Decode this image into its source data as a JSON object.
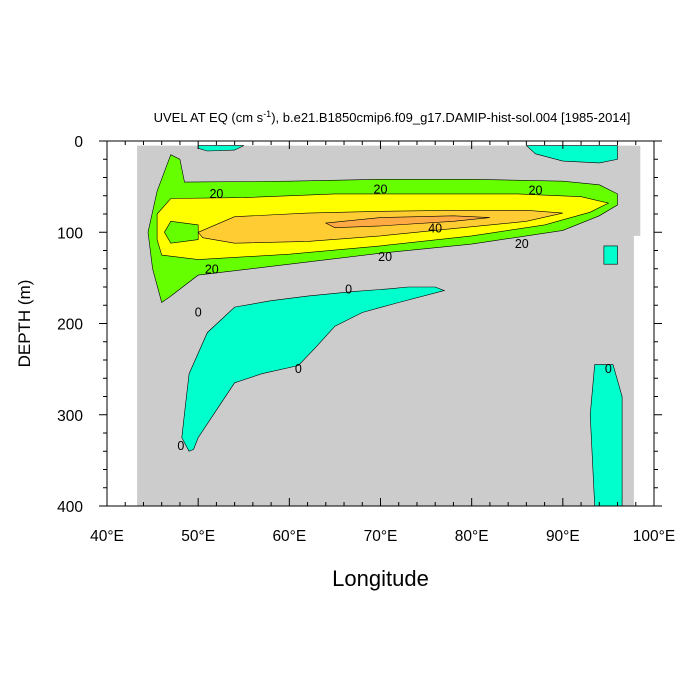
{
  "chart_data": {
    "type": "contour",
    "title": {
      "prefix": "UVEL AT EQ (cm s",
      "superscript": "-1",
      "suffix": "), b.e21.B1850cmip6.f09_g17.DAMIP-hist-sol.004 [1985-2014]"
    },
    "xlabel": "Longitude",
    "ylabel": "DEPTH (m)",
    "xlim": [
      40,
      100
    ],
    "ylim": [
      0,
      400
    ],
    "y_inverted": true,
    "x_ticks": [
      {
        "value": 40,
        "label": "40°E"
      },
      {
        "value": 50,
        "label": "50°E"
      },
      {
        "value": 60,
        "label": "60°E"
      },
      {
        "value": 70,
        "label": "70°E"
      },
      {
        "value": 80,
        "label": "80°E"
      },
      {
        "value": 90,
        "label": "90°E"
      },
      {
        "value": 100,
        "label": "100°E"
      }
    ],
    "y_ticks": [
      {
        "value": 0,
        "label": "0"
      },
      {
        "value": 100,
        "label": "100"
      },
      {
        "value": 200,
        "label": "200"
      },
      {
        "value": 300,
        "label": "300"
      },
      {
        "value": 400,
        "label": "400"
      }
    ],
    "colors": {
      "negative": "#00ffcc",
      "zero_to_10": "#33ff55",
      "10_to_20": "#66ff00",
      "20_to_30": "#ffff00",
      "30_to_40": "#ffcc33",
      "over_40": "#ffaa44",
      "land": "#ffffff",
      "contour_line": "#000000"
    },
    "contour_levels": [
      0,
      10,
      20,
      30,
      40
    ],
    "data_extent_lon": [
      43.3,
      98.5
    ],
    "regions": [
      {
        "name": "background",
        "level": "0_to_10",
        "points": [
          [
            43.3,
            5
          ],
          [
            98.5,
            5
          ],
          [
            98.5,
            400
          ],
          [
            43.3,
            400
          ]
        ]
      },
      {
        "name": "eastern-shelf-notch",
        "level": "land",
        "points": [
          [
            97.8,
            104
          ],
          [
            98.6,
            104
          ],
          [
            98.6,
            400
          ],
          [
            97.8,
            400
          ]
        ]
      },
      {
        "name": "surface-west-negative",
        "level": "negative",
        "points": [
          [
            50,
            5
          ],
          [
            55,
            5
          ],
          [
            54,
            10
          ],
          [
            51,
            11
          ],
          [
            50,
            8
          ]
        ]
      },
      {
        "name": "surface-east-negative",
        "level": "negative",
        "points": [
          [
            86,
            5
          ],
          [
            96,
            5
          ],
          [
            96,
            20
          ],
          [
            94,
            24
          ],
          [
            90,
            22
          ],
          [
            87,
            14
          ]
        ]
      },
      {
        "name": "east-small-negative",
        "level": "negative",
        "points": [
          [
            94.5,
            115
          ],
          [
            96,
            115
          ],
          [
            96,
            135
          ],
          [
            94.5,
            135
          ]
        ]
      },
      {
        "name": "subsurface-negative",
        "level": "negative",
        "points": [
          [
            49,
            340
          ],
          [
            48.2,
            325
          ],
          [
            48.6,
            290
          ],
          [
            49,
            255
          ],
          [
            51,
            210
          ],
          [
            54,
            182
          ],
          [
            58,
            175
          ],
          [
            62,
            170
          ],
          [
            67,
            165
          ],
          [
            71,
            162
          ],
          [
            73,
            160
          ],
          [
            76,
            160
          ],
          [
            77,
            164
          ],
          [
            72,
            177
          ],
          [
            68,
            188
          ],
          [
            65,
            203
          ],
          [
            63,
            225
          ],
          [
            61,
            246
          ],
          [
            57,
            255
          ],
          [
            54,
            265
          ],
          [
            52,
            295
          ],
          [
            50,
            325
          ],
          [
            49.5,
            338
          ]
        ]
      },
      {
        "name": "east-deep-negative",
        "level": "negative",
        "points": [
          [
            93.5,
            245
          ],
          [
            95.5,
            245
          ],
          [
            96.5,
            280
          ],
          [
            96.5,
            400
          ],
          [
            93.5,
            400
          ],
          [
            93,
            300
          ]
        ]
      },
      {
        "name": "jet-10",
        "level": "10_to_20",
        "points": [
          [
            45,
            140
          ],
          [
            44.5,
            100
          ],
          [
            45.5,
            55
          ],
          [
            47,
            15
          ],
          [
            48,
            20
          ],
          [
            48.5,
            45
          ],
          [
            60,
            44
          ],
          [
            70,
            42
          ],
          [
            80,
            42
          ],
          [
            90,
            44
          ],
          [
            94,
            48
          ],
          [
            96,
            58
          ],
          [
            96,
            70
          ],
          [
            94,
            82
          ],
          [
            90,
            98
          ],
          [
            80,
            113
          ],
          [
            70,
            123
          ],
          [
            60,
            135
          ],
          [
            50,
            147
          ],
          [
            47,
            170
          ],
          [
            46,
            177
          ]
        ]
      },
      {
        "name": "jet-20",
        "level": "20_to_30",
        "points": [
          [
            45.5,
            80
          ],
          [
            47,
            63
          ],
          [
            55,
            62
          ],
          [
            65,
            58
          ],
          [
            75,
            58
          ],
          [
            85,
            58
          ],
          [
            92,
            61
          ],
          [
            95,
            68
          ],
          [
            93,
            78
          ],
          [
            88,
            92
          ],
          [
            80,
            104
          ],
          [
            70,
            115
          ],
          [
            60,
            124
          ],
          [
            50,
            130
          ],
          [
            46,
            125
          ],
          [
            45.5,
            108
          ]
        ]
      },
      {
        "name": "jet-west-10-patch",
        "level": "10_to_20",
        "points": [
          [
            47,
            88
          ],
          [
            50,
            92
          ],
          [
            50,
            108
          ],
          [
            47,
            112
          ],
          [
            46.3,
            100
          ]
        ]
      },
      {
        "name": "jet-30",
        "level": "30_to_40",
        "points": [
          [
            50,
            100
          ],
          [
            54,
            83
          ],
          [
            62,
            79
          ],
          [
            70,
            77
          ],
          [
            78,
            76
          ],
          [
            86,
            76
          ],
          [
            90,
            79
          ],
          [
            86,
            88
          ],
          [
            78,
            96
          ],
          [
            70,
            104
          ],
          [
            62,
            110
          ],
          [
            54,
            112
          ],
          [
            50.5,
            106
          ]
        ]
      },
      {
        "name": "jet-40",
        "level": "over_40",
        "points": [
          [
            64,
            90
          ],
          [
            70,
            84
          ],
          [
            78,
            82
          ],
          [
            82,
            84
          ],
          [
            78,
            88
          ],
          [
            70,
            93
          ],
          [
            65,
            95
          ]
        ]
      }
    ],
    "contour_labels": [
      {
        "text": "20",
        "lon": 52,
        "depth": 58
      },
      {
        "text": "20",
        "lon": 70,
        "depth": 53
      },
      {
        "text": "20",
        "lon": 87,
        "depth": 54
      },
      {
        "text": "40",
        "lon": 76,
        "depth": 96
      },
      {
        "text": "20",
        "lon": 85.5,
        "depth": 113
      },
      {
        "text": "20",
        "lon": 70.5,
        "depth": 127
      },
      {
        "text": "20",
        "lon": 51.5,
        "depth": 141
      },
      {
        "text": "0",
        "lon": 66.5,
        "depth": 163
      },
      {
        "text": "0",
        "lon": 50,
        "depth": 188
      },
      {
        "text": "0",
        "lon": 61,
        "depth": 250
      },
      {
        "text": "0",
        "lon": 95,
        "depth": 250
      },
      {
        "text": "0",
        "lon": 48.1,
        "depth": 334
      }
    ]
  }
}
